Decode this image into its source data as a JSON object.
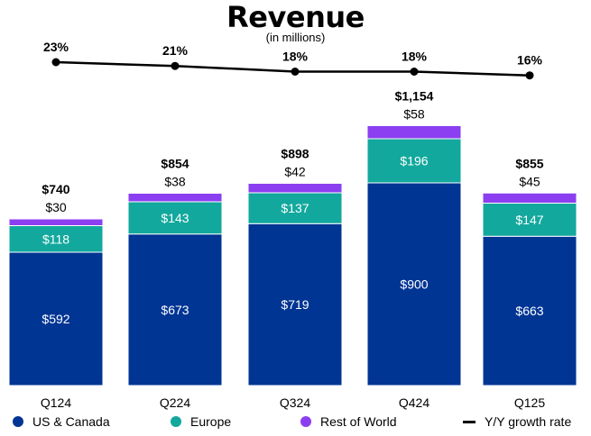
{
  "chart_data": {
    "type": "bar",
    "title": "Revenue",
    "subtitle": "(in millions)",
    "categories": [
      "Q124",
      "Q224",
      "Q324",
      "Q424",
      "Q125"
    ],
    "series": [
      {
        "name": "US & Canada",
        "values": [
          592,
          673,
          719,
          900,
          663
        ],
        "labels": [
          "$592",
          "$673",
          "$719",
          "$900",
          "$663"
        ],
        "color": "#003594"
      },
      {
        "name": "Europe",
        "values": [
          118,
          143,
          137,
          196,
          147
        ],
        "labels": [
          "$118",
          "$143",
          "$137",
          "$196",
          "$147"
        ],
        "color": "#12A89D"
      },
      {
        "name": "Rest of World",
        "values": [
          30,
          38,
          42,
          58,
          45
        ],
        "labels": [
          "$30",
          "$38",
          "$42",
          "$58",
          "$45"
        ],
        "color": "#8B3FF0"
      }
    ],
    "totals": [
      740,
      854,
      898,
      1154,
      855
    ],
    "total_labels": [
      "$740",
      "$854",
      "$898",
      "$1,154",
      "$855"
    ],
    "growth_series": {
      "name": "Y/Y growth rate",
      "values": [
        23,
        21,
        18,
        18,
        16
      ],
      "labels": [
        "23%",
        "21%",
        "18%",
        "18%",
        "16%"
      ],
      "color": "#000000"
    },
    "stacked": true,
    "legend": "bottom",
    "grid": false
  }
}
